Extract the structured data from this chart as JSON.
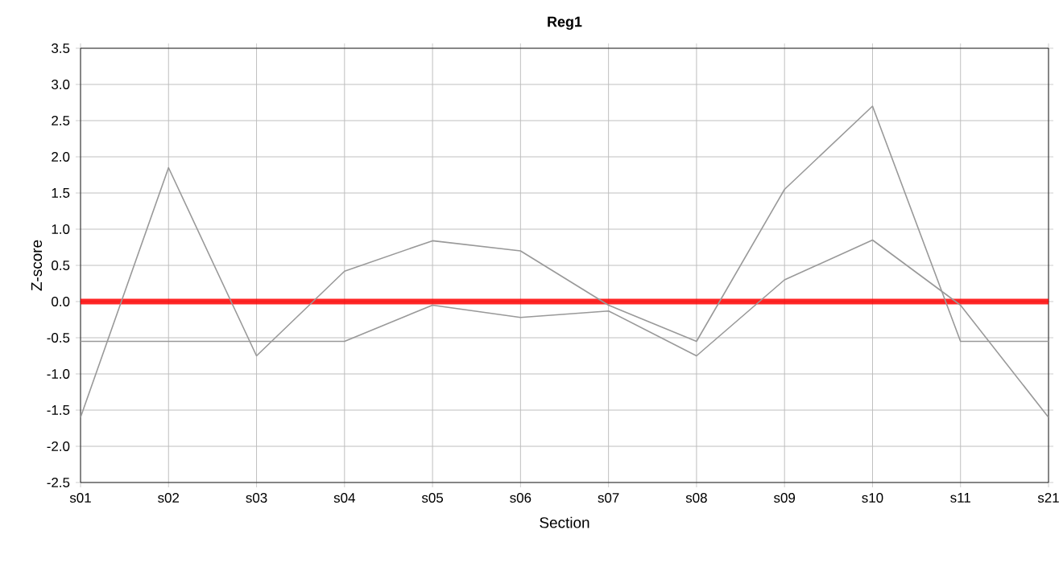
{
  "chart_data": {
    "type": "line",
    "title": "Reg1",
    "xlabel": "Section",
    "ylabel": "Z-score",
    "categories": [
      "s01",
      "s02",
      "s03",
      "s04",
      "s05",
      "s06",
      "s07",
      "s08",
      "s09",
      "s10",
      "s11",
      "s21"
    ],
    "series": [
      {
        "color": "#999999",
        "values": [
          -1.6,
          1.85,
          -0.75,
          0.42,
          0.84,
          0.7,
          -0.05,
          -0.55,
          1.55,
          2.7,
          -0.55,
          -0.55
        ]
      },
      {
        "color": "#999999",
        "values": [
          -0.55,
          -0.55,
          -0.55,
          -0.55,
          -0.05,
          -0.22,
          -0.13,
          -0.75,
          0.3,
          0.85,
          -0.05,
          -1.6
        ]
      }
    ],
    "ylim": [
      -2.5,
      3.5
    ],
    "yticks": [
      -2.5,
      {
        "value": -2,
        "label": "-2.0"
      },
      -1.5,
      {
        "value": -1,
        "label": "-1.0"
      },
      -0.5,
      {
        "value": 0,
        "label": "0.0"
      },
      0.5,
      {
        "value": 1,
        "label": "1.0"
      },
      1.5,
      {
        "value": 2,
        "label": "2.0"
      },
      2.5,
      {
        "value": 3,
        "label": "3.0"
      },
      3.5
    ],
    "grid": true,
    "marker": "none",
    "line_style": "solid",
    "ref_lines": [
      {
        "axis": "y",
        "value": 0,
        "color": "#ff0000"
      }
    ]
  }
}
